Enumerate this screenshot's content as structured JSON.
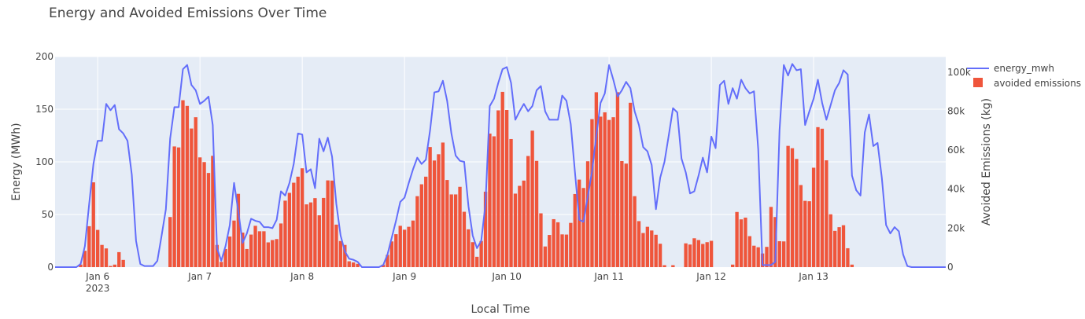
{
  "chart_data": {
    "type": "bar+line",
    "title": "Energy and Avoided Emissions Over Time",
    "xlabel": "Local Time",
    "ylabel": "Energy (MWh)",
    "y2label": "Avoided Emissions (kg)",
    "x_start": "2023-01-05 14:00",
    "x_step_hours": 1,
    "x_ticks": [
      {
        "time": "2023-01-06 00:00",
        "label": "Jan 6",
        "sublabel": "2023"
      },
      {
        "time": "2023-01-07 00:00",
        "label": "Jan 7"
      },
      {
        "time": "2023-01-08 00:00",
        "label": "Jan 8"
      },
      {
        "time": "2023-01-09 00:00",
        "label": "Jan 9"
      },
      {
        "time": "2023-01-10 00:00",
        "label": "Jan 10"
      },
      {
        "time": "2023-01-11 00:00",
        "label": "Jan 11"
      },
      {
        "time": "2023-01-12 00:00",
        "label": "Jan 12"
      },
      {
        "time": "2023-01-13 00:00",
        "label": "Jan 13"
      }
    ],
    "ylim": [
      0,
      200
    ],
    "y_ticks": [
      0,
      50,
      100,
      150,
      200
    ],
    "y2lim": [
      0,
      108000
    ],
    "y2_ticks": [
      {
        "value": 0,
        "label": "0"
      },
      {
        "value": 20000,
        "label": "20k"
      },
      {
        "value": 40000,
        "label": "40k"
      },
      {
        "value": 60000,
        "label": "60k"
      },
      {
        "value": 80000,
        "label": "80k"
      },
      {
        "value": 100000,
        "label": "100k"
      }
    ],
    "grid": true,
    "legend_position": "top-right",
    "series": [
      {
        "name": "energy_mwh",
        "type": "line",
        "axis": "y",
        "color": "#636efa",
        "values": [
          0,
          0,
          0,
          0,
          0,
          0,
          3,
          20,
          60,
          98,
          120,
          120,
          155,
          149,
          154,
          131,
          127,
          120,
          88,
          25,
          3,
          1,
          1,
          1,
          6,
          30,
          55,
          122,
          152,
          152,
          188,
          192,
          173,
          168,
          155,
          158,
          162,
          135,
          18,
          6,
          20,
          40,
          80,
          53,
          23,
          32,
          46,
          44,
          43,
          38,
          38,
          37,
          45,
          72,
          68,
          80,
          98,
          127,
          126,
          90,
          93,
          75,
          122,
          110,
          123,
          105,
          60,
          30,
          15,
          8,
          7,
          5,
          0,
          0,
          0,
          0,
          0,
          2,
          12,
          28,
          44,
          62,
          66,
          80,
          93,
          104,
          98,
          102,
          130,
          166,
          167,
          177,
          158,
          127,
          106,
          101,
          100,
          58,
          30,
          18,
          25,
          60,
          153,
          160,
          175,
          188,
          190,
          175,
          140,
          148,
          155,
          148,
          153,
          168,
          172,
          148,
          140,
          140,
          140,
          163,
          158,
          136,
          90,
          45,
          43,
          67,
          91,
          125,
          156,
          165,
          192,
          178,
          162,
          168,
          176,
          170,
          148,
          135,
          114,
          110,
          97,
          55,
          85,
          100,
          125,
          151,
          147,
          103,
          90,
          70,
          72,
          87,
          104,
          90,
          124,
          113,
          173,
          177,
          155,
          170,
          160,
          178,
          170,
          165,
          167,
          112,
          2,
          2,
          2,
          5,
          130,
          192,
          182,
          193,
          187,
          188,
          135,
          148,
          160,
          178,
          156,
          140,
          154,
          168,
          175,
          187,
          183,
          87,
          73,
          68,
          128,
          145,
          115,
          118,
          85,
          40,
          32,
          38,
          34,
          12,
          1,
          0,
          0,
          0,
          0,
          0,
          0,
          0,
          0,
          0
        ]
      },
      {
        "name": "avoided emissions",
        "type": "bar",
        "axis": "y2",
        "color": "#ef553b",
        "values": [
          0,
          0,
          0,
          0,
          0,
          0,
          1300,
          8400,
          21000,
          43500,
          19100,
          11400,
          9600,
          600,
          1300,
          7700,
          3700,
          0,
          0,
          0,
          0,
          0,
          0,
          0,
          0,
          0,
          0,
          25700,
          61900,
          61400,
          85600,
          82700,
          71100,
          76900,
          56300,
          53900,
          48300,
          57100,
          11400,
          2700,
          9300,
          15700,
          23900,
          37600,
          17700,
          9300,
          16700,
          21200,
          18400,
          18400,
          12700,
          13900,
          14400,
          22400,
          34100,
          38100,
          43300,
          46400,
          50700,
          32200,
          33200,
          35400,
          26600,
          35500,
          44500,
          44400,
          21800,
          13400,
          11400,
          3000,
          2400,
          1700,
          0,
          0,
          0,
          0,
          0,
          1300,
          6300,
          13200,
          16900,
          21200,
          19200,
          20700,
          23900,
          36400,
          42500,
          46400,
          61600,
          54700,
          57900,
          63900,
          44700,
          37300,
          37300,
          41200,
          28400,
          19400,
          12800,
          5300,
          13400,
          38700,
          68500,
          67100,
          80400,
          89900,
          80600,
          65700,
          37700,
          41700,
          44400,
          57000,
          70000,
          54500,
          27600,
          10600,
          16500,
          24600,
          23000,
          16800,
          16700,
          22700,
          37500,
          44900,
          40600,
          54300,
          75900,
          89700,
          77200,
          79400,
          75500,
          76900,
          89700,
          54400,
          53100,
          84300,
          36400,
          23600,
          17500,
          20700,
          18800,
          16600,
          12000,
          1000,
          0,
          1000,
          0,
          0,
          12200,
          11600,
          14800,
          13900,
          11900,
          12800,
          13500,
          0,
          0,
          0,
          0,
          1300,
          28300,
          24500,
          25400,
          15900,
          11000,
          10200,
          7000,
          10400,
          30900,
          25700,
          13300,
          13200,
          62200,
          61000,
          55500,
          42100,
          34000,
          33800,
          51000,
          71800,
          71000,
          54800,
          27100,
          18600,
          20500,
          21500,
          9700,
          1300,
          0,
          0,
          0,
          0,
          0,
          0,
          0,
          0,
          0
        ]
      }
    ]
  }
}
